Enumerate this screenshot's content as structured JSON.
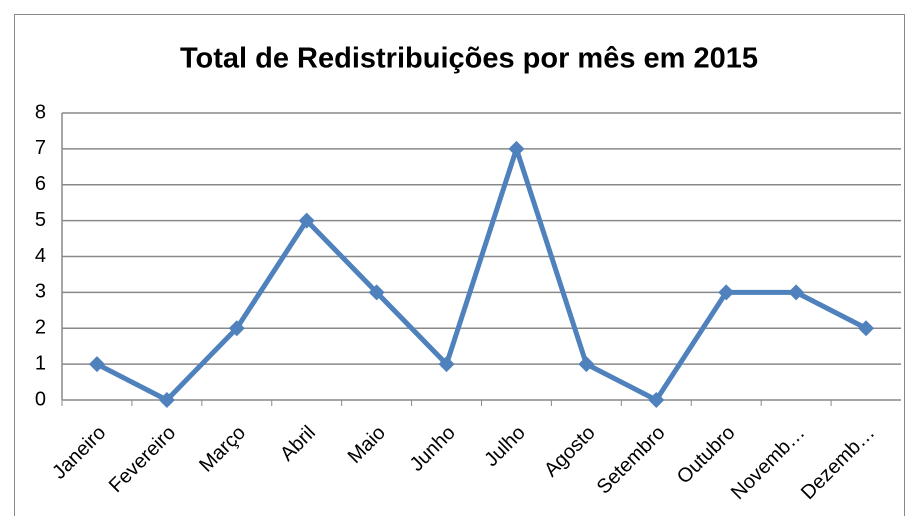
{
  "chart_data": {
    "type": "line",
    "title": "Total de Redistribuições por mês em 2015",
    "categories": [
      "Janeiro",
      "Fevereiro",
      "Março",
      "Abril",
      "Maio",
      "Junho",
      "Julho",
      "Agosto",
      "Setembro",
      "Outubro",
      "Novemb…",
      "Dezemb…"
    ],
    "series": [
      {
        "name": "Total",
        "color": "#4f81bd",
        "values": [
          1,
          0,
          2,
          5,
          3,
          1,
          7,
          1,
          0,
          3,
          3,
          2
        ]
      }
    ],
    "ylim": [
      0,
      8
    ],
    "yticks": [
      0,
      1,
      2,
      3,
      4,
      5,
      6,
      7,
      8
    ],
    "grid": true
  }
}
